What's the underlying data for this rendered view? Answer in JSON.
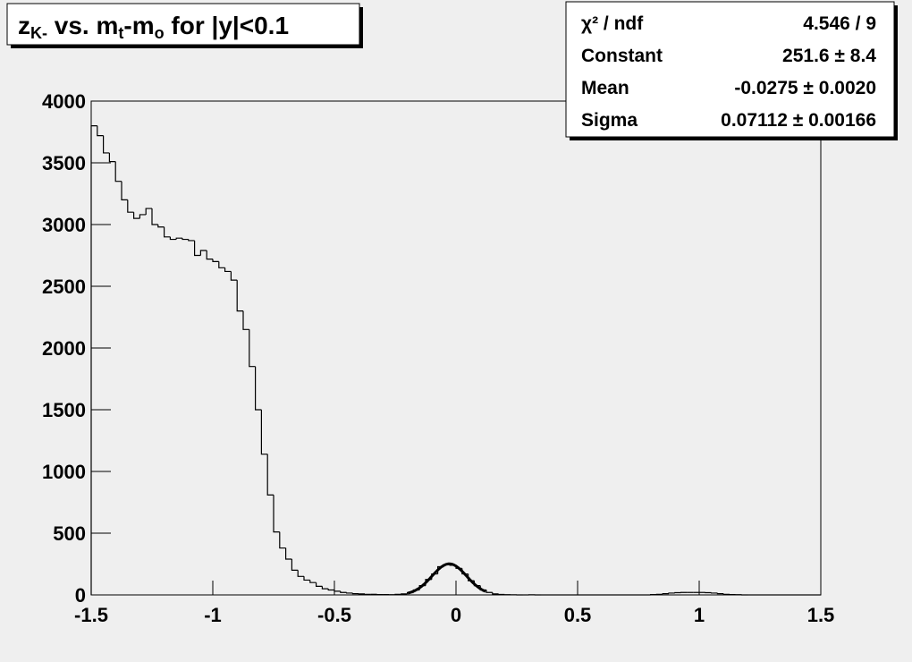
{
  "chart_data": {
    "type": "histogram",
    "title": [
      {
        "text": "z"
      },
      {
        "text": "K-",
        "sub": true
      },
      {
        "text": " vs. m"
      },
      {
        "text": "t",
        "sub": true
      },
      {
        "text": "-m"
      },
      {
        "text": "o",
        "sub": true
      },
      {
        "text": " for |y|<0.1"
      }
    ],
    "bins": [
      -1.5,
      -1.475,
      -1.45,
      -1.425,
      -1.4,
      -1.375,
      -1.35,
      -1.325,
      -1.3,
      -1.275,
      -1.25,
      -1.225,
      -1.2,
      -1.175,
      -1.15,
      -1.125,
      -1.1,
      -1.075,
      -1.05,
      -1.025,
      -1,
      -0.975,
      -0.95,
      -0.925,
      -0.9,
      -0.875,
      -0.85,
      -0.825,
      -0.8,
      -0.775,
      -0.75,
      -0.725,
      -0.7,
      -0.675,
      -0.65,
      -0.625,
      -0.6,
      -0.575,
      -0.55,
      -0.525,
      -0.5,
      -0.475,
      -0.45,
      -0.425,
      -0.4,
      -0.375,
      -0.35,
      -0.325,
      -0.3,
      -0.275,
      -0.25,
      -0.225,
      -0.2,
      -0.175,
      -0.15,
      -0.125,
      -0.1,
      -0.075,
      -0.05,
      -0.025,
      0,
      0.025,
      0.05,
      0.075,
      0.1,
      0.125,
      0.15,
      0.175,
      0.2,
      0.225,
      0.25,
      0.275,
      0.3,
      0.325,
      0.35,
      0.375,
      0.4,
      0.425,
      0.45,
      0.475,
      0.5,
      0.525,
      0.55,
      0.575,
      0.6,
      0.625,
      0.65,
      0.675,
      0.7,
      0.725,
      0.75,
      0.775,
      0.8,
      0.825,
      0.85,
      0.875,
      0.9,
      0.925,
      0.95,
      0.975,
      1,
      1.025,
      1.05,
      1.075,
      1.1,
      1.125,
      1.15,
      1.175,
      1.2,
      1.225,
      1.25,
      1.275,
      1.3,
      1.325,
      1.35,
      1.375,
      1.4,
      1.425,
      1.45,
      1.475,
      1.5
    ],
    "values": [
      3800,
      3720,
      3580,
      3510,
      3350,
      3200,
      3100,
      3050,
      3080,
      3130,
      3000,
      2980,
      2900,
      2880,
      2890,
      2880,
      2870,
      2750,
      2790,
      2720,
      2700,
      2650,
      2620,
      2550,
      2300,
      2150,
      1850,
      1500,
      1140,
      810,
      510,
      380,
      290,
      200,
      150,
      120,
      100,
      70,
      50,
      40,
      30,
      20,
      15,
      10,
      8,
      5,
      5,
      3,
      3,
      2,
      5,
      8,
      18,
      40,
      75,
      125,
      170,
      228,
      245,
      240,
      215,
      170,
      115,
      75,
      40,
      20,
      8,
      4,
      2,
      1,
      0,
      0,
      1,
      0,
      0,
      0,
      0,
      0,
      0,
      0,
      0,
      0,
      0,
      0,
      0,
      0,
      0,
      0,
      0,
      0,
      0,
      0,
      3,
      5,
      10,
      15,
      18,
      20,
      20,
      20,
      20,
      18,
      15,
      10,
      5,
      3,
      2,
      0,
      0,
      0,
      0,
      0,
      0,
      0,
      0,
      0,
      0,
      0,
      0,
      0
    ],
    "color": "#000000",
    "fit": {
      "constant": 251.6,
      "mean": -0.0275,
      "sigma": 0.07112
    },
    "stats": [
      {
        "label": "χ² / ndf",
        "value": "4.546 / 9"
      },
      {
        "label": "Constant",
        "value": "251.6 ± 8.4"
      },
      {
        "label": "Mean",
        "value": "-0.0275 ± 0.0020"
      },
      {
        "label": "Sigma",
        "value": "0.07112 ± 0.00166"
      }
    ],
    "xlim": [
      -1.5,
      1.5
    ],
    "xticks": [
      -1.5,
      -1,
      -0.5,
      0,
      0.5,
      1,
      1.5
    ],
    "ylim": [
      0,
      4000
    ],
    "yticks": [
      0,
      500,
      1000,
      1500,
      2000,
      2500,
      3000,
      3500,
      4000
    ]
  }
}
